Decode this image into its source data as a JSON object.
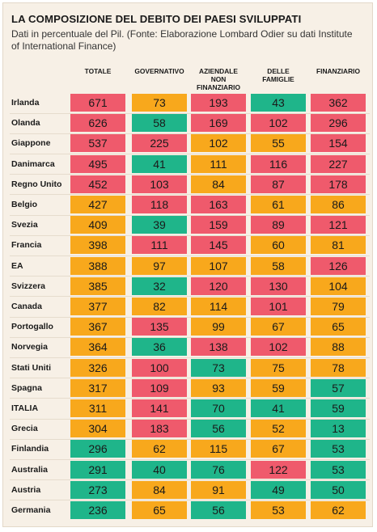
{
  "header": {
    "title": "LA COMPOSIZIONE DEL DEBITO DEI PAESI SVILUPPATI",
    "subtitle": "Dati in percentuale del Pil. (Fonte: Elaborazione Lombard Odier su dati Institute of International Finance)"
  },
  "colors": {
    "high": "#ef5a6c",
    "mid": "#f8a81c",
    "low": "#1fb58a"
  },
  "chart_data": {
    "type": "table",
    "columns": [
      {
        "key": "totale",
        "label_lines": [
          "TOTALE"
        ]
      },
      {
        "key": "governativo",
        "label_lines": [
          "GOVERNATIVO"
        ]
      },
      {
        "key": "aziendale",
        "label_lines": [
          "AZIENDALE",
          "NON",
          "FINANZIARIO"
        ]
      },
      {
        "key": "famiglie",
        "label_lines": [
          "DELLE",
          "FAMIGLIE"
        ]
      },
      {
        "key": "finanziario",
        "label_lines": [
          "FINANZIARIO"
        ]
      }
    ],
    "rows": [
      {
        "country": "Irlanda",
        "values": [
          671,
          73,
          193,
          43,
          362
        ],
        "levels": [
          "high",
          "mid",
          "high",
          "low",
          "high"
        ]
      },
      {
        "country": "Olanda",
        "values": [
          626,
          58,
          169,
          102,
          296
        ],
        "levels": [
          "high",
          "low",
          "high",
          "high",
          "high"
        ]
      },
      {
        "country": "Giappone",
        "values": [
          537,
          225,
          102,
          55,
          154
        ],
        "levels": [
          "high",
          "high",
          "mid",
          "mid",
          "high"
        ]
      },
      {
        "country": "Danimarca",
        "values": [
          495,
          41,
          111,
          116,
          227
        ],
        "levels": [
          "high",
          "low",
          "mid",
          "high",
          "high"
        ]
      },
      {
        "country": "Regno Unito",
        "values": [
          452,
          103,
          84,
          87,
          178
        ],
        "levels": [
          "high",
          "high",
          "mid",
          "high",
          "high"
        ]
      },
      {
        "country": "Belgio",
        "values": [
          427,
          118,
          163,
          61,
          86
        ],
        "levels": [
          "mid",
          "high",
          "high",
          "mid",
          "mid"
        ]
      },
      {
        "country": "Svezia",
        "values": [
          409,
          39,
          159,
          89,
          121
        ],
        "levels": [
          "mid",
          "low",
          "high",
          "high",
          "high"
        ]
      },
      {
        "country": "Francia",
        "values": [
          398,
          111,
          145,
          60,
          81
        ],
        "levels": [
          "mid",
          "high",
          "high",
          "mid",
          "mid"
        ]
      },
      {
        "country": "EA",
        "values": [
          388,
          97,
          107,
          58,
          126
        ],
        "levels": [
          "mid",
          "mid",
          "mid",
          "mid",
          "high"
        ]
      },
      {
        "country": "Svizzera",
        "values": [
          385,
          32,
          120,
          130,
          104
        ],
        "levels": [
          "mid",
          "low",
          "high",
          "high",
          "mid"
        ]
      },
      {
        "country": "Canada",
        "values": [
          377,
          82,
          114,
          101,
          79
        ],
        "levels": [
          "mid",
          "mid",
          "mid",
          "high",
          "mid"
        ]
      },
      {
        "country": "Portogallo",
        "values": [
          367,
          135,
          99,
          67,
          65
        ],
        "levels": [
          "mid",
          "high",
          "mid",
          "mid",
          "mid"
        ]
      },
      {
        "country": "Norvegia",
        "values": [
          364,
          36,
          138,
          102,
          88
        ],
        "levels": [
          "mid",
          "low",
          "high",
          "high",
          "mid"
        ]
      },
      {
        "country": "Stati Uniti",
        "values": [
          326,
          100,
          73,
          75,
          78
        ],
        "levels": [
          "mid",
          "high",
          "low",
          "mid",
          "mid"
        ]
      },
      {
        "country": "Spagna",
        "values": [
          317,
          109,
          93,
          59,
          57
        ],
        "levels": [
          "mid",
          "high",
          "mid",
          "mid",
          "low"
        ]
      },
      {
        "country": "ITALIA",
        "values": [
          311,
          141,
          70,
          41,
          59
        ],
        "levels": [
          "mid",
          "high",
          "low",
          "low",
          "low"
        ]
      },
      {
        "country": "Grecia",
        "values": [
          304,
          183,
          56,
          52,
          13
        ],
        "levels": [
          "mid",
          "high",
          "low",
          "mid",
          "low"
        ]
      },
      {
        "country": "Finlandia",
        "values": [
          296,
          62,
          115,
          67,
          53
        ],
        "levels": [
          "low",
          "mid",
          "mid",
          "mid",
          "low"
        ]
      },
      {
        "country": "Australia",
        "values": [
          291,
          40,
          76,
          122,
          53
        ],
        "levels": [
          "low",
          "low",
          "low",
          "high",
          "low"
        ]
      },
      {
        "country": "Austria",
        "values": [
          273,
          84,
          91,
          49,
          50
        ],
        "levels": [
          "low",
          "mid",
          "mid",
          "low",
          "low"
        ]
      },
      {
        "country": "Germania",
        "values": [
          236,
          65,
          56,
          53,
          62
        ],
        "levels": [
          "low",
          "mid",
          "low",
          "mid",
          "mid"
        ]
      }
    ]
  }
}
